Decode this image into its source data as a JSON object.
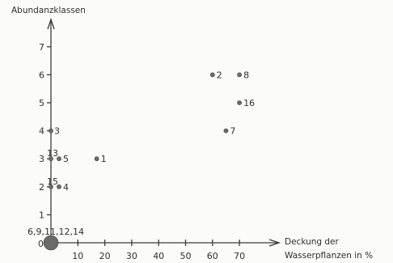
{
  "chart_data": {
    "type": "scatter",
    "ylabel": "Abundanzklassen",
    "xlabel_line1": "Deckung der",
    "xlabel_line2": "Wasserpflanzen in %",
    "xlim": [
      0,
      75
    ],
    "ylim": [
      0,
      7.8
    ],
    "x_ticks": [
      10,
      20,
      30,
      40,
      50,
      60,
      70
    ],
    "y_ticks": [
      1,
      2,
      3,
      4,
      5,
      6,
      7
    ],
    "y_zero_label": "0",
    "points": [
      {
        "x": 60,
        "y": 6,
        "label": "2"
      },
      {
        "x": 70,
        "y": 6,
        "label": "8"
      },
      {
        "x": 70,
        "y": 5,
        "label": "16"
      },
      {
        "x": 65,
        "y": 4,
        "label": "7"
      },
      {
        "x": 0,
        "y": 4,
        "label": "3"
      },
      {
        "x": 17,
        "y": 3,
        "label": "1"
      },
      {
        "x": 3,
        "y": 3,
        "label": "5"
      },
      {
        "x": 0,
        "y": 3,
        "label": "13"
      },
      {
        "x": 3,
        "y": 2,
        "label": "4"
      },
      {
        "x": 0,
        "y": 2,
        "label": "15"
      },
      {
        "x": 0,
        "y": 0,
        "label": "6,9,11,12,14",
        "large": true
      }
    ]
  }
}
